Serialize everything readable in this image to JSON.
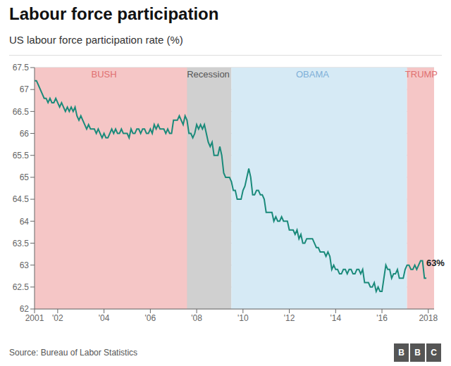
{
  "chart_data": {
    "type": "line",
    "title": "Labour force participation",
    "subtitle": "US labour force participation rate (%)",
    "source": "Source: Bureau of Labor Statistics",
    "logo": "BBC",
    "color": "#1a8a7a",
    "grid": true,
    "xlim": [
      2001,
      2018.25
    ],
    "xticks": [
      2001,
      {
        "value": 2002,
        "label": "'02"
      },
      {
        "value": 2004,
        "label": "'04"
      },
      {
        "value": 2006,
        "label": "'06"
      },
      {
        "value": 2008,
        "label": "'08"
      },
      {
        "value": 2010,
        "label": "'10"
      },
      {
        "value": 2012,
        "label": "'12"
      },
      {
        "value": 2014,
        "label": "'14"
      },
      {
        "value": 2016,
        "label": "'16"
      },
      2018
    ],
    "ylim": [
      62,
      67.5
    ],
    "yticks": [
      62,
      62.5,
      63,
      63.5,
      64,
      64.5,
      65,
      65.5,
      66,
      66.5,
      67,
      67.5
    ],
    "regions": [
      {
        "label": "BUSH",
        "start": 2001.0,
        "end": 2009.167,
        "color": "#f5c6c6",
        "label_color": "#e07070",
        "label_x": 2004.0
      },
      {
        "label": "Recession",
        "start": 2007.583,
        "end": 2009.5,
        "color": "#d0d0d0",
        "label_color": "#555555",
        "label_x": 2008.5
      },
      {
        "label": "OBAMA",
        "start": 2009.5,
        "end": 2017.083,
        "color": "#d6eaf5",
        "label_color": "#80b0d8",
        "label_x": 2013.0
      },
      {
        "label": "TRUMP",
        "start": 2017.083,
        "end": 2018.25,
        "color": "#f5c6c6",
        "label_color": "#e07070",
        "label_x": 2017.7
      }
    ],
    "annotations": [
      {
        "text": "63%",
        "x": 2017.7,
        "y": 63.05
      }
    ],
    "x": [
      2001.0,
      2001.083,
      2001.167,
      2001.25,
      2001.333,
      2001.417,
      2001.5,
      2001.583,
      2001.667,
      2001.75,
      2001.833,
      2001.917,
      2002.0,
      2002.083,
      2002.167,
      2002.25,
      2002.333,
      2002.417,
      2002.5,
      2002.583,
      2002.667,
      2002.75,
      2002.833,
      2002.917,
      2003.0,
      2003.083,
      2003.167,
      2003.25,
      2003.333,
      2003.417,
      2003.5,
      2003.583,
      2003.667,
      2003.75,
      2003.833,
      2003.917,
      2004.0,
      2004.083,
      2004.167,
      2004.25,
      2004.333,
      2004.417,
      2004.5,
      2004.583,
      2004.667,
      2004.75,
      2004.833,
      2004.917,
      2005.0,
      2005.083,
      2005.167,
      2005.25,
      2005.333,
      2005.417,
      2005.5,
      2005.583,
      2005.667,
      2005.75,
      2005.833,
      2005.917,
      2006.0,
      2006.083,
      2006.167,
      2006.25,
      2006.333,
      2006.417,
      2006.5,
      2006.583,
      2006.667,
      2006.75,
      2006.833,
      2006.917,
      2007.0,
      2007.083,
      2007.167,
      2007.25,
      2007.333,
      2007.417,
      2007.5,
      2007.583,
      2007.667,
      2007.75,
      2007.833,
      2007.917,
      2008.0,
      2008.083,
      2008.167,
      2008.25,
      2008.333,
      2008.417,
      2008.5,
      2008.583,
      2008.667,
      2008.75,
      2008.833,
      2008.917,
      2009.0,
      2009.083,
      2009.167,
      2009.25,
      2009.333,
      2009.417,
      2009.5,
      2009.583,
      2009.667,
      2009.75,
      2009.833,
      2009.917,
      2010.0,
      2010.083,
      2010.167,
      2010.25,
      2010.333,
      2010.417,
      2010.5,
      2010.583,
      2010.667,
      2010.75,
      2010.833,
      2010.917,
      2011.0,
      2011.083,
      2011.167,
      2011.25,
      2011.333,
      2011.417,
      2011.5,
      2011.583,
      2011.667,
      2011.75,
      2011.833,
      2011.917,
      2012.0,
      2012.083,
      2012.167,
      2012.25,
      2012.333,
      2012.417,
      2012.5,
      2012.583,
      2012.667,
      2012.75,
      2012.833,
      2012.917,
      2013.0,
      2013.083,
      2013.167,
      2013.25,
      2013.333,
      2013.417,
      2013.5,
      2013.583,
      2013.667,
      2013.75,
      2013.833,
      2013.917,
      2014.0,
      2014.083,
      2014.167,
      2014.25,
      2014.333,
      2014.417,
      2014.5,
      2014.583,
      2014.667,
      2014.75,
      2014.833,
      2014.917,
      2015.0,
      2015.083,
      2015.167,
      2015.25,
      2015.333,
      2015.417,
      2015.5,
      2015.583,
      2015.667,
      2015.75,
      2015.833,
      2015.917,
      2016.0,
      2016.083,
      2016.167,
      2016.25,
      2016.333,
      2016.417,
      2016.5,
      2016.583,
      2016.667,
      2016.75,
      2016.833,
      2016.917,
      2017.0,
      2017.083,
      2017.167,
      2017.25,
      2017.333,
      2017.417,
      2017.5,
      2017.583,
      2017.667,
      2017.75,
      2017.833,
      2017.917
    ],
    "values": [
      67.2,
      67.2,
      67.1,
      67.0,
      66.9,
      66.8,
      66.8,
      66.7,
      66.8,
      66.7,
      66.7,
      66.8,
      66.7,
      66.6,
      66.7,
      66.6,
      66.5,
      66.6,
      66.5,
      66.6,
      66.5,
      66.6,
      66.4,
      66.3,
      66.4,
      66.3,
      66.2,
      66.1,
      66.2,
      66.1,
      66.1,
      66.1,
      66.0,
      66.1,
      66.0,
      65.9,
      66.0,
      65.9,
      65.9,
      66.0,
      66.1,
      66.0,
      66.1,
      66.0,
      66.0,
      66.1,
      66.0,
      66.0,
      66.0,
      65.9,
      66.1,
      66.0,
      66.0,
      66.1,
      66.1,
      66.0,
      66.1,
      66.1,
      66.0,
      66.0,
      66.1,
      66.0,
      66.2,
      66.1,
      66.2,
      66.1,
      66.1,
      66.1,
      66.0,
      66.1,
      66.0,
      66.0,
      66.3,
      66.3,
      66.3,
      66.4,
      66.3,
      66.2,
      66.4,
      66.3,
      66.0,
      66.0,
      65.9,
      66.0,
      66.2,
      66.1,
      66.2,
      66.1,
      66.2,
      66.0,
      65.8,
      65.7,
      65.8,
      65.5,
      65.5,
      65.5,
      65.7,
      65.5,
      65.1,
      65.0,
      65.0,
      65.0,
      64.9,
      64.7,
      64.7,
      64.5,
      64.5,
      64.5,
      64.7,
      64.8,
      65.0,
      65.2,
      65.0,
      64.6,
      64.6,
      64.7,
      64.7,
      64.6,
      64.6,
      64.5,
      64.2,
      64.2,
      64.2,
      64.2,
      64.0,
      64.1,
      64.0,
      64.0,
      64.1,
      64.0,
      64.0,
      64.0,
      63.8,
      63.8,
      63.8,
      63.7,
      63.8,
      63.6,
      63.7,
      63.5,
      63.5,
      63.6,
      63.6,
      63.6,
      63.6,
      63.5,
      63.4,
      63.4,
      63.3,
      63.3,
      63.3,
      63.2,
      63.3,
      63.2,
      62.9,
      63.0,
      62.9,
      62.9,
      62.8,
      62.8,
      62.9,
      62.9,
      62.8,
      62.9,
      62.9,
      62.8,
      62.8,
      62.9,
      62.9,
      62.8,
      62.9,
      62.6,
      62.6,
      62.6,
      62.5,
      62.5,
      62.6,
      62.4,
      62.5,
      62.4,
      62.4,
      62.7,
      63.0,
      62.9,
      62.9,
      62.7,
      62.8,
      62.8,
      62.9,
      62.7,
      62.7,
      62.7,
      62.9,
      63.0,
      63.0,
      62.9,
      62.9,
      63.0,
      62.9,
      63.0,
      63.1,
      63.1,
      62.7,
      62.7
    ]
  }
}
